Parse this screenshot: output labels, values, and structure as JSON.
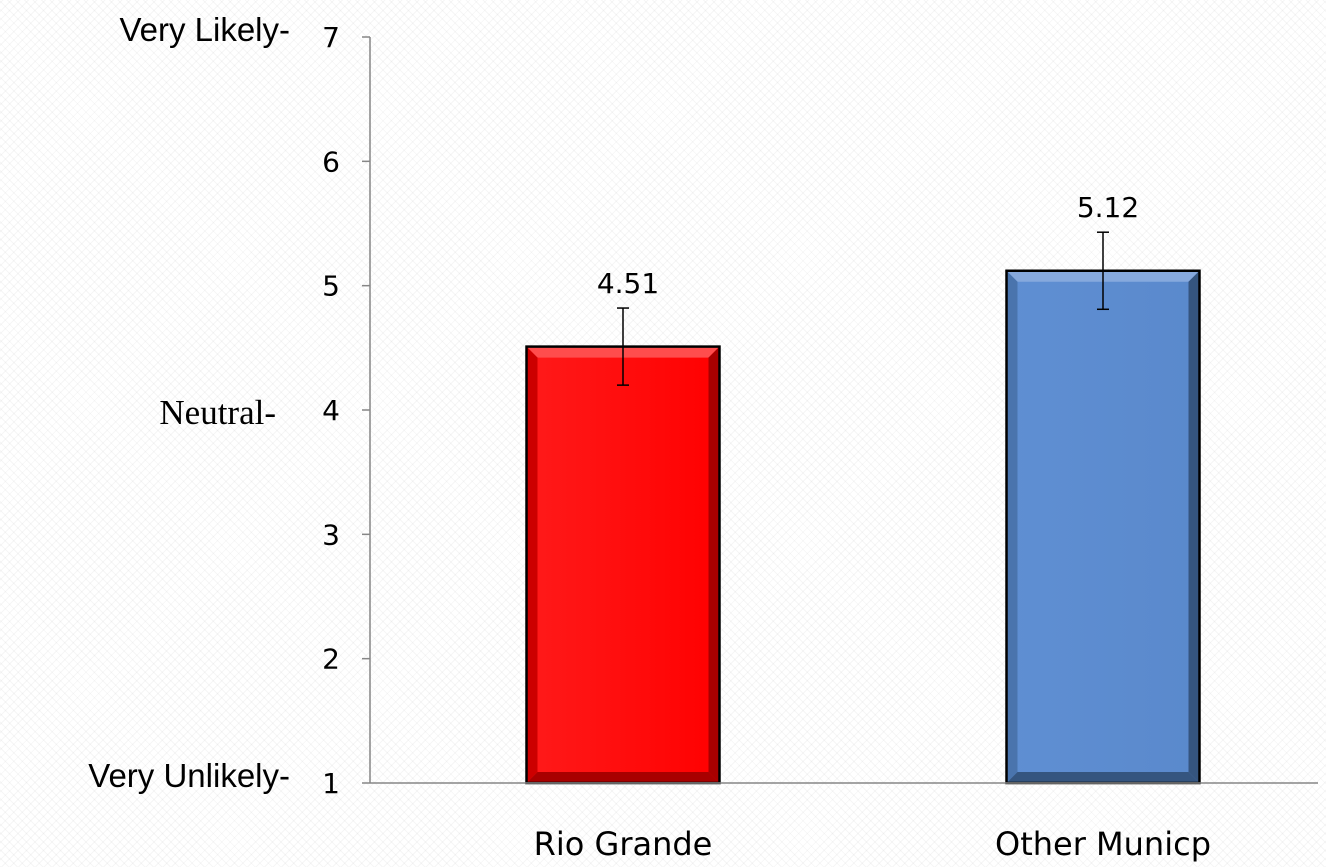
{
  "chart_data": {
    "type": "bar",
    "categories": [
      "Rio Grande",
      "Other Municp"
    ],
    "values": [
      4.51,
      5.12
    ],
    "data_labels": [
      "4.51",
      "5.12"
    ],
    "error_bars": [
      0.31,
      0.31
    ],
    "ylim": [
      1,
      7
    ],
    "yticks": [
      "1",
      "2",
      "3",
      "4",
      "5",
      "6",
      "7"
    ],
    "scale_anchors": [
      {
        "value": 7,
        "label": "Very Likely-"
      },
      {
        "value": 4,
        "label": "Neutral-"
      },
      {
        "value": 1,
        "label": "Very Unlikely-"
      }
    ],
    "title": "",
    "xlabel": "",
    "ylabel": "",
    "grid": false,
    "legend": "none",
    "colors": [
      "#ff0000",
      "#5b8bcf"
    ]
  }
}
